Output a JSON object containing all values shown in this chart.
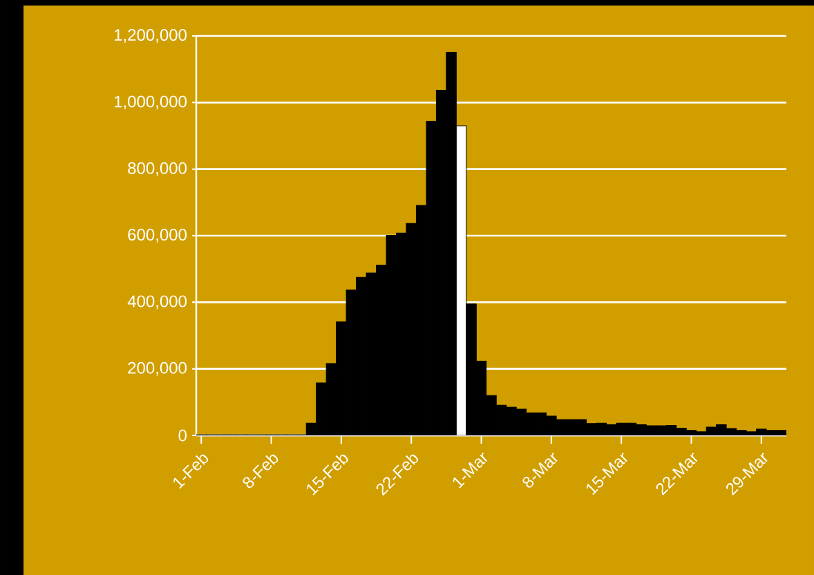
{
  "chart_data": {
    "type": "bar",
    "categories": [
      "1-Feb",
      null,
      null,
      null,
      null,
      null,
      null,
      "8-Feb",
      null,
      null,
      null,
      null,
      null,
      null,
      "15-Feb",
      null,
      null,
      null,
      null,
      null,
      null,
      "22-Feb",
      null,
      null,
      null,
      null,
      null,
      null,
      "1-Mar",
      null,
      null,
      null,
      null,
      null,
      null,
      "8-Mar",
      null,
      null,
      null,
      null,
      null,
      null,
      "15-Mar",
      null,
      null,
      null,
      null,
      null,
      null,
      "22-Mar",
      null,
      null,
      null,
      null,
      null,
      null,
      "29-Mar",
      null,
      null
    ],
    "values": [
      2000,
      2000,
      2000,
      2000,
      2000,
      2000,
      2000,
      2000,
      2000,
      2000,
      2000,
      37000,
      158000,
      216000,
      341000,
      437000,
      475000,
      488000,
      511000,
      601000,
      608000,
      637000,
      691000,
      944000,
      1037000,
      1151000,
      930000,
      395000,
      223000,
      120000,
      91000,
      85000,
      79000,
      68000,
      68000,
      58000,
      48000,
      48000,
      48000,
      36000,
      37000,
      32000,
      37000,
      37000,
      32000,
      29000,
      29000,
      30000,
      22000,
      15000,
      11000,
      25000,
      32000,
      21000,
      15000,
      11000,
      19000,
      15000,
      15000
    ],
    "colors": [
      "#000000",
      "#000000",
      "#000000",
      "#000000",
      "#000000",
      "#000000",
      "#000000",
      "#000000",
      "#000000",
      "#000000",
      "#000000",
      "#000000",
      "#000000",
      "#000000",
      "#000000",
      "#000000",
      "#000000",
      "#000000",
      "#000000",
      "#000000",
      "#000000",
      "#000000",
      "#000000",
      "#000000",
      "#000000",
      "#000000",
      "#ffffff",
      "#000000",
      "#000000",
      "#000000",
      "#000000",
      "#000000",
      "#000000",
      "#000000",
      "#000000",
      "#000000",
      "#000000",
      "#000000",
      "#000000",
      "#000000",
      "#000000",
      "#000000",
      "#000000",
      "#000000",
      "#000000",
      "#000000",
      "#000000",
      "#000000",
      "#000000",
      "#000000",
      "#000000",
      "#000000",
      "#000000",
      "#000000",
      "#000000",
      "#000000",
      "#000000",
      "#000000",
      "#000000"
    ],
    "ylim": [
      0,
      1200000
    ],
    "yticks": [
      0,
      {
        "value": 200000,
        "label": "200,000"
      },
      {
        "value": 400000,
        "label": "400,000"
      },
      {
        "value": 600000,
        "label": "600,000"
      },
      {
        "value": 800000,
        "label": "800,000"
      },
      {
        "value": 1000000,
        "label": "1,000,000"
      },
      {
        "value": 1200000,
        "label": "1,200,000"
      }
    ],
    "grid": "y"
  }
}
